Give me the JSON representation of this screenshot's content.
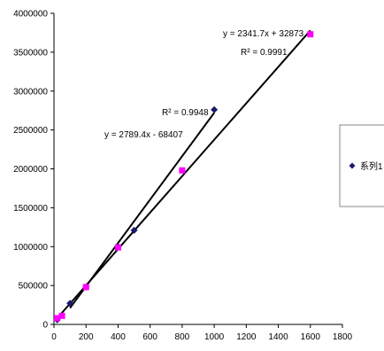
{
  "chart_data": {
    "type": "scatter",
    "title": "",
    "xlabel": "",
    "ylabel": "",
    "xlim": [
      0,
      1800
    ],
    "ylim": [
      0,
      4000000
    ],
    "x_ticks": [
      0,
      200,
      400,
      600,
      800,
      1000,
      1200,
      1400,
      1600,
      1800
    ],
    "y_ticks": [
      0,
      500000,
      1000000,
      1500000,
      2000000,
      2500000,
      3000000,
      3500000,
      4000000
    ],
    "x_tick_labels": [
      "0",
      "200",
      "400",
      "600",
      "800",
      "1000",
      "1200",
      "1400",
      "1600",
      "1800"
    ],
    "y_tick_labels": [
      "0",
      "500000",
      "1000000",
      "1500000",
      "2000000",
      "2500000",
      "3000000",
      "3500000",
      "4000000"
    ],
    "grid": false,
    "legend_position": "right",
    "series": [
      {
        "name": "系列1",
        "marker": "diamond",
        "color": "#1a1a6e",
        "x": [
          20,
          100,
          200,
          400,
          500,
          1000
        ],
        "y": [
          60000,
          270000,
          480000,
          1000000,
          1210000,
          2760000
        ],
        "trendline": {
          "equation": "y = 2789.4x - 68407",
          "r2": "R² = 0.9948",
          "slope": 2789.4,
          "intercept": -68407,
          "x_range": [
            100,
            1000
          ]
        }
      },
      {
        "name": "",
        "marker": "square",
        "color": "#ff00ff",
        "x": [
          20,
          50,
          200,
          400,
          800,
          1600
        ],
        "y": [
          80000,
          110000,
          480000,
          990000,
          1980000,
          3730000
        ],
        "trendline": {
          "equation": "y = 2341.7x + 32873",
          "r2": "R² = 0.9991",
          "slope": 2341.7,
          "intercept": 32873,
          "x_range": [
            20,
            1600
          ]
        }
      }
    ],
    "legend": [
      "系列1"
    ]
  }
}
